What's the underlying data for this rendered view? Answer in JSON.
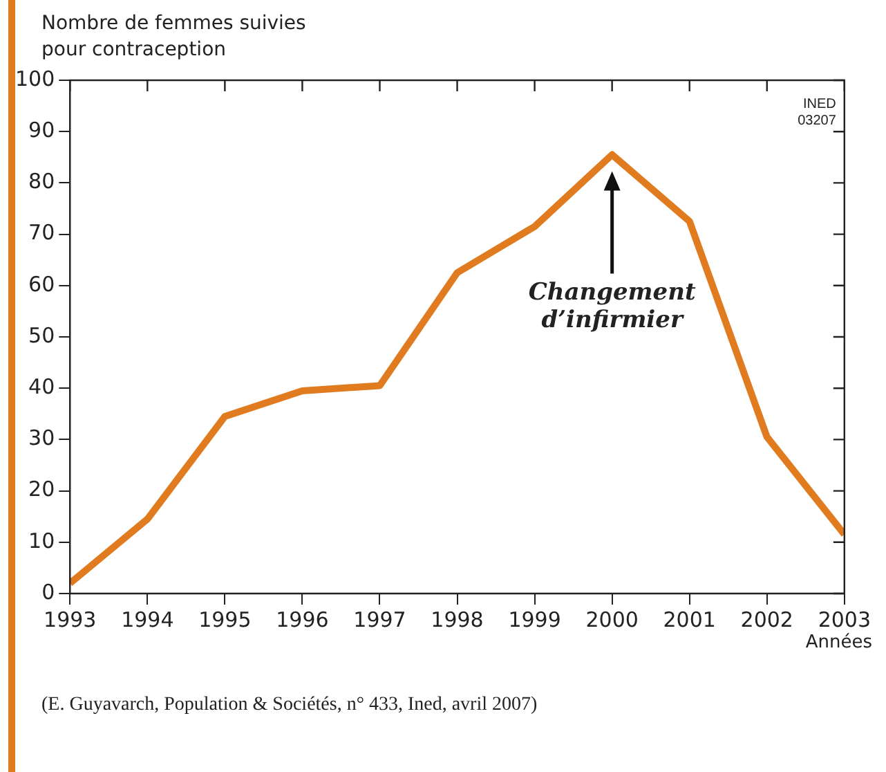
{
  "chart_data": {
    "type": "line",
    "ylabel": "Nombre de femmes suivies pour contraception",
    "xlabel": "Années",
    "x": [
      1993,
      1994,
      1995,
      1996,
      1997,
      1998,
      1999,
      2000,
      2001,
      2002,
      2003
    ],
    "series": [
      {
        "color": "#e07b1f",
        "values": [
          2,
          14.5,
          34.5,
          39.5,
          40.5,
          62.5,
          71.5,
          85.5,
          72.5,
          30.5,
          11.5
        ]
      }
    ],
    "xlim": [
      1993,
      2003
    ],
    "xticks": [
      1993,
      1994,
      1995,
      1996,
      1997,
      1998,
      1999,
      2000,
      2001,
      2002,
      2003
    ],
    "ylim": [
      0,
      100
    ],
    "yticks": [
      0,
      10,
      20,
      30,
      40,
      50,
      60,
      70,
      80,
      90,
      100
    ],
    "grid": false,
    "legend": false,
    "marker": "none",
    "line_style": "solid",
    "annotations": [
      "Changement d’infirmier",
      "INED 03207",
      "(E. Guyavarch, Population & Sociétés, n° 433, Ined, avril 2007)"
    ]
  }
}
